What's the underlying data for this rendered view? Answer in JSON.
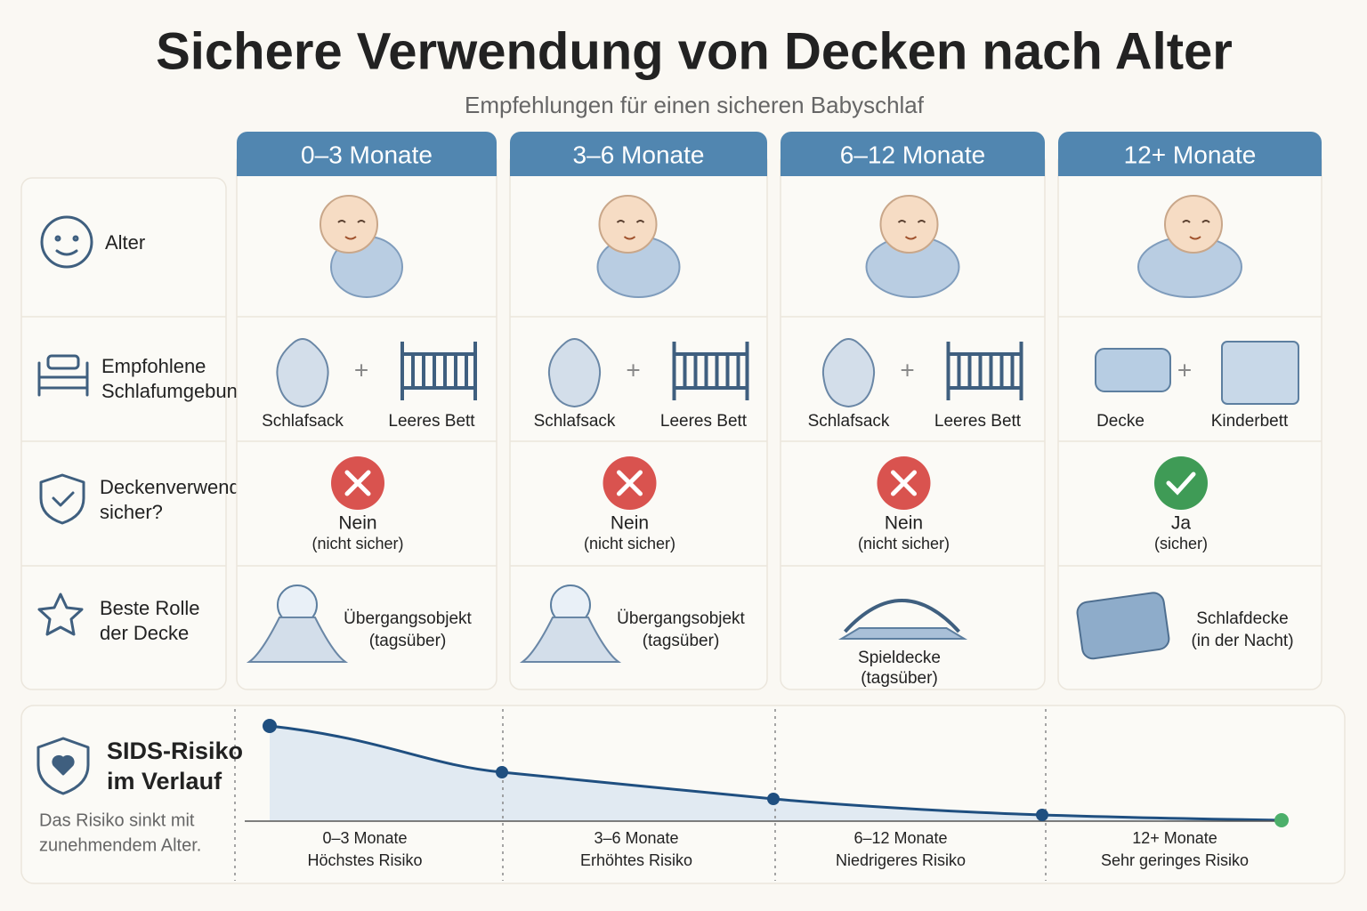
{
  "title": "Sichere Verwendung von Decken nach Alter",
  "subtitle": "Empfehlungen für einen sicheren Babyschlaf",
  "columns": [
    "0–3 Monate",
    "3–6 Monate",
    "6–12 Monate",
    "12+ Monate"
  ],
  "rows": [
    {
      "label": [
        "Alter"
      ]
    },
    {
      "label": [
        "Empfohlene",
        "Schlafumgebung"
      ]
    },
    {
      "label": [
        "Deckenverwendung",
        "sicher?"
      ]
    },
    {
      "label": [
        "Beste Rolle",
        "der Decke"
      ]
    }
  ],
  "environment": [
    [
      "Schlafsack",
      "Leeres Bett"
    ],
    [
      "Schlafsack",
      "Leeres Bett"
    ],
    [
      "Schlafsack",
      "Leeres Bett"
    ],
    [
      "Decke",
      "Kinderbett"
    ]
  ],
  "safety": [
    {
      "answer": "Nein",
      "note": "(nicht sicher)",
      "safe": false
    },
    {
      "answer": "Nein",
      "note": "(nicht sicher)",
      "safe": false
    },
    {
      "answer": "Nein",
      "note": "(nicht sicher)",
      "safe": false
    },
    {
      "answer": "Ja",
      "note": "(sicher)",
      "safe": true
    }
  ],
  "role": [
    {
      "item": "Übergangsobjekt",
      "note": "(tagsüber)"
    },
    {
      "item": "Übergangsobjekt",
      "note": "(tagsüber)"
    },
    {
      "item": "Spieldecke",
      "note": "(tagsüber)"
    },
    {
      "item": "Schlafdecke",
      "note": "(in der Nacht)"
    }
  ],
  "sids": {
    "title": [
      "SIDS-Risiko",
      "im Verlauf"
    ],
    "description": [
      "Das Risiko sinkt mit",
      "zunehmendem Alter."
    ],
    "stages": [
      {
        "age": "0–3 Monate",
        "risk": "Höchstes Risiko"
      },
      {
        "age": "3–6 Monate",
        "risk": "Erhöhtes Risiko"
      },
      {
        "age": "6–12 Monate",
        "risk": "Niedrigeres Risiko"
      },
      {
        "age": "12+ Monate",
        "risk": "Sehr geringes Risiko"
      }
    ]
  }
}
